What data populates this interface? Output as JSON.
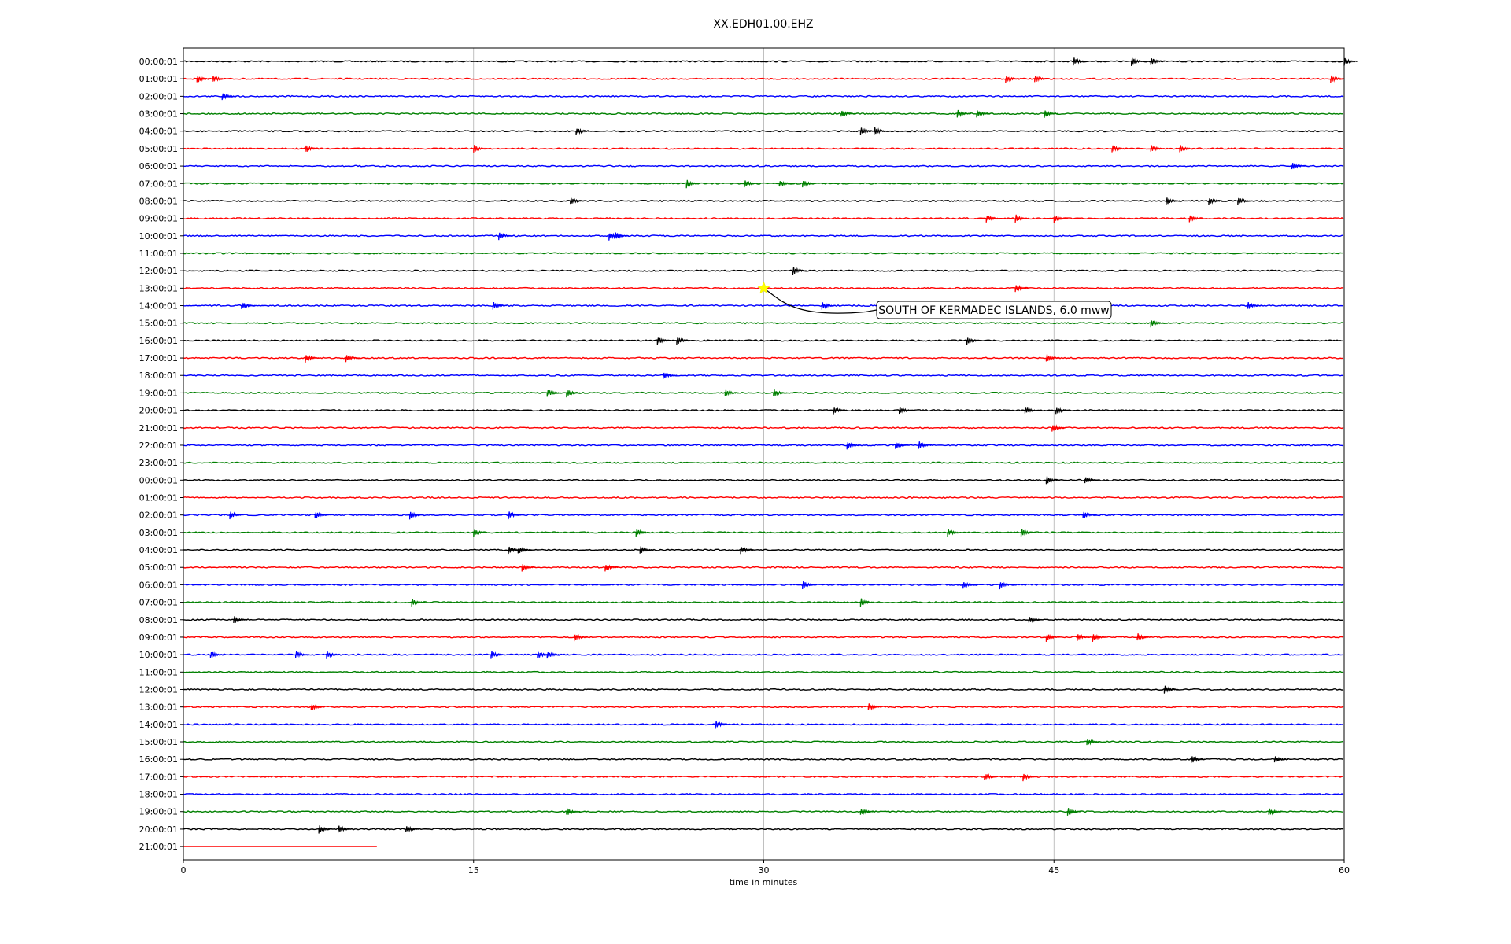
{
  "chart_data": {
    "type": "line",
    "title": "XX.EDH01.00.EHZ",
    "xlabel": "time in minutes",
    "ylabel": "",
    "xlim": [
      0,
      60
    ],
    "xticks": [
      0,
      15,
      30,
      45,
      60
    ],
    "vertical_gridlines_at": [
      15,
      30,
      45
    ],
    "trace_colors": [
      "#000000",
      "#ff0000",
      "#0000ff",
      "#008000"
    ],
    "last_trace_end_minute": 10,
    "traces": [
      {
        "label": "00:00:01",
        "events": [
          46,
          49,
          50,
          60
        ]
      },
      {
        "label": "01:00:01",
        "events": [
          0.7,
          1.5,
          42.5,
          44,
          59.3
        ]
      },
      {
        "label": "02:00:01",
        "events": [
          2
        ]
      },
      {
        "label": "03:00:01",
        "events": [
          34,
          40,
          41,
          44.5
        ]
      },
      {
        "label": "04:00:01",
        "events": [
          20.3,
          35,
          35.7
        ]
      },
      {
        "label": "05:00:01",
        "events": [
          6.3,
          15,
          48,
          50,
          51.5
        ]
      },
      {
        "label": "06:00:01",
        "events": [
          57.3
        ]
      },
      {
        "label": "07:00:01",
        "events": [
          26,
          29,
          30.8,
          32
        ]
      },
      {
        "label": "08:00:01",
        "events": [
          20,
          50.8,
          53,
          54.5
        ]
      },
      {
        "label": "09:00:01",
        "events": [
          41.5,
          43,
          45,
          52
        ]
      },
      {
        "label": "10:00:01",
        "events": [
          16.3,
          22,
          22.3
        ]
      },
      {
        "label": "11:00:01",
        "events": []
      },
      {
        "label": "12:00:01",
        "events": [
          31.5
        ]
      },
      {
        "label": "13:00:01",
        "events": [
          43
        ]
      },
      {
        "label": "14:00:01",
        "events": [
          3,
          16,
          33,
          55
        ]
      },
      {
        "label": "15:00:01",
        "events": [
          50
        ]
      },
      {
        "label": "16:00:01",
        "events": [
          24.5,
          25.5,
          40.5
        ]
      },
      {
        "label": "17:00:01",
        "events": [
          6.3,
          8.4,
          44.6
        ]
      },
      {
        "label": "18:00:01",
        "events": [
          24.8
        ]
      },
      {
        "label": "19:00:01",
        "events": [
          18.8,
          19.8,
          28,
          30.5
        ]
      },
      {
        "label": "20:00:01",
        "events": [
          33.6,
          37,
          43.5,
          45.1
        ]
      },
      {
        "label": "21:00:01",
        "events": [
          44.9
        ]
      },
      {
        "label": "22:00:01",
        "events": [
          34.3,
          36.8,
          38
        ]
      },
      {
        "label": "23:00:01",
        "events": []
      },
      {
        "label": "00:00:01",
        "events": [
          44.6,
          46.6
        ]
      },
      {
        "label": "01:00:01",
        "events": []
      },
      {
        "label": "02:00:01",
        "events": [
          2.4,
          6.8,
          11.7,
          16.8,
          46.5
        ]
      },
      {
        "label": "03:00:01",
        "events": [
          15,
          23.4,
          39.5,
          43.3
        ]
      },
      {
        "label": "04:00:01",
        "events": [
          16.8,
          17.3,
          23.6,
          28.8
        ]
      },
      {
        "label": "05:00:01",
        "events": [
          17.5,
          21.8
        ]
      },
      {
        "label": "06:00:01",
        "events": [
          32,
          40.3,
          42.2
        ]
      },
      {
        "label": "07:00:01",
        "events": [
          11.8,
          35
        ]
      },
      {
        "label": "08:00:01",
        "events": [
          2.6,
          43.7
        ]
      },
      {
        "label": "09:00:01",
        "events": [
          20.2,
          44.6,
          46.2,
          47,
          49.3
        ]
      },
      {
        "label": "10:00:01",
        "events": [
          1.4,
          5.8,
          7.4,
          15.9,
          18.3,
          18.8
        ]
      },
      {
        "label": "11:00:01",
        "events": []
      },
      {
        "label": "12:00:01",
        "events": [
          50.7
        ]
      },
      {
        "label": "13:00:01",
        "events": [
          6.6,
          35.4
        ]
      },
      {
        "label": "14:00:01",
        "events": [
          27.5
        ]
      },
      {
        "label": "15:00:01",
        "events": [
          46.7
        ]
      },
      {
        "label": "16:00:01",
        "events": [
          52.1,
          56.4
        ]
      },
      {
        "label": "17:00:01",
        "events": [
          41.4,
          43.4
        ]
      },
      {
        "label": "18:00:01",
        "events": []
      },
      {
        "label": "19:00:01",
        "events": [
          19.8,
          35,
          45.7,
          56.1
        ]
      },
      {
        "label": "20:00:01",
        "events": [
          7,
          8,
          11.5
        ]
      },
      {
        "label": "21:00:01",
        "events": []
      }
    ],
    "annotation": {
      "text": "SOUTH OF KERMADEC ISLANDS, 6.0 mww",
      "marker_minute": 30,
      "marker_trace_index": 13,
      "marker_color": "#ffff00"
    }
  }
}
